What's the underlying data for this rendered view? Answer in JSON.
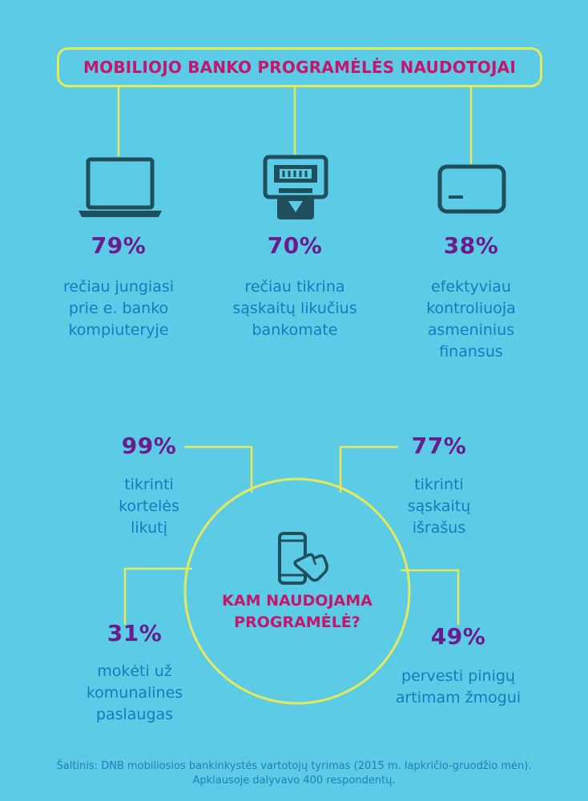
{
  "header": {
    "title": "MOBILIOJO BANKO PROGRAMĖLĖS NAUDOTOJAI"
  },
  "colors": {
    "background": "#5ccbe6",
    "accent_yellow": "#e6e95a",
    "title_magenta": "#c5156d",
    "percent_purple": "#6a1b8c",
    "text_blue": "#0f7dbe",
    "icon_dark": "#1f4f5c"
  },
  "users": [
    {
      "icon": "laptop-icon",
      "percent": "79%",
      "lines": [
        "rečiau jungiasi",
        "prie e. banko",
        "kompiuteryje"
      ]
    },
    {
      "icon": "atm-icon",
      "percent": "70%",
      "lines": [
        "rečiau tikrina",
        "sąskaitų likučius",
        "bankomate"
      ]
    },
    {
      "icon": "card-icon",
      "percent": "38%",
      "lines": [
        "efektyviau",
        "kontroliuoja",
        "asmeninius",
        "finansus"
      ]
    }
  ],
  "usage": {
    "center_lines": [
      "KAM NAUDOJAMA",
      "PROGRAMĖLĖ?"
    ],
    "center_icon": "smartphone-touch-icon",
    "items": [
      {
        "percent": "99%",
        "lines": [
          "tikrinti",
          "kortelės",
          "likutį"
        ]
      },
      {
        "percent": "77%",
        "lines": [
          "tikrinti",
          "sąskaitų",
          "išrašus"
        ]
      },
      {
        "percent": "31%",
        "lines": [
          "mokėti už",
          "komunalines",
          "paslaugas"
        ]
      },
      {
        "percent": "49%",
        "lines": [
          "pervesti pinigų",
          "artimam žmogui"
        ]
      }
    ]
  },
  "footer": {
    "source_line1": "Šaltinis: DNB mobiliosios bankinkystės vartotojų tyrimas (2015 m. lapkričio-gruodžio mėn).",
    "source_line2": "Apklausoje dalyvavo 400 respondentų."
  }
}
